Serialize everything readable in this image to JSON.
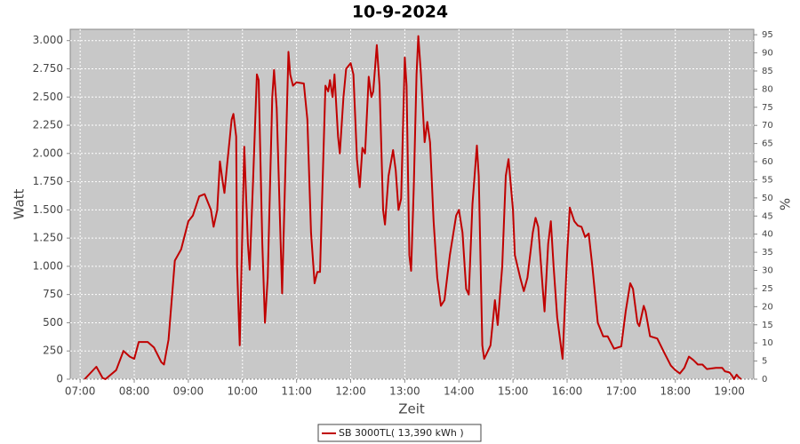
{
  "chart_data": {
    "type": "line",
    "title": "10-9-2024",
    "xlabel": "Zeit",
    "ylabel": "Watt",
    "y2label": "%",
    "xlim": [
      409,
      1167
    ],
    "xticks": [
      {
        "value": 420,
        "label": "07:00"
      },
      {
        "value": 480,
        "label": "08:00"
      },
      {
        "value": 540,
        "label": "09:00"
      },
      {
        "value": 600,
        "label": "10:00"
      },
      {
        "value": 660,
        "label": "11:00"
      },
      {
        "value": 720,
        "label": "12:00"
      },
      {
        "value": 780,
        "label": "13:00"
      },
      {
        "value": 840,
        "label": "14:00"
      },
      {
        "value": 900,
        "label": "15:00"
      },
      {
        "value": 960,
        "label": "16:00"
      },
      {
        "value": 1020,
        "label": "17:00"
      },
      {
        "value": 1080,
        "label": "18:00"
      },
      {
        "value": 1140,
        "label": "19:00"
      }
    ],
    "ylim": [
      0,
      3100
    ],
    "yticks": [
      0,
      250,
      500,
      750,
      {
        "value": 1000,
        "label": "1.000"
      },
      {
        "value": 1250,
        "label": "1.250"
      },
      {
        "value": 1500,
        "label": "1.500"
      },
      {
        "value": 1750,
        "label": "1.750"
      },
      {
        "value": 2000,
        "label": "2.000"
      },
      {
        "value": 2250,
        "label": "2.250"
      },
      {
        "value": 2500,
        "label": "2.500"
      },
      {
        "value": 2750,
        "label": "2.750"
      },
      {
        "value": 3000,
        "label": "3.000"
      }
    ],
    "y2lim": [
      0,
      96.5
    ],
    "y2ticks": [
      0,
      5,
      10,
      15,
      20,
      25,
      30,
      35,
      40,
      45,
      50,
      55,
      60,
      65,
      70,
      75,
      80,
      85,
      90,
      95
    ],
    "grid": true,
    "legend": "bottom",
    "x": [
      425,
      438,
      445,
      448,
      460,
      468,
      475,
      480,
      485,
      495,
      502,
      510,
      513,
      518,
      525,
      532,
      540,
      545,
      552,
      558,
      565,
      568,
      572,
      575,
      578,
      580,
      583,
      588,
      590,
      593,
      594,
      597,
      602,
      606,
      608,
      612,
      616,
      618,
      622,
      625,
      628,
      633,
      635,
      638,
      644,
      648,
      651,
      653,
      656,
      660,
      668,
      672,
      676,
      680,
      683,
      686,
      692,
      695,
      697,
      700,
      702,
      706,
      708,
      712,
      715,
      720,
      723,
      727,
      730,
      733,
      736,
      740,
      743,
      745,
      749,
      752,
      756,
      758,
      762,
      767,
      770,
      773,
      776,
      780,
      782,
      785,
      787,
      790,
      793,
      795,
      798,
      802,
      805,
      808,
      812,
      816,
      820,
      824,
      830,
      837,
      840,
      844,
      848,
      851,
      855,
      860,
      862,
      866,
      868,
      871,
      875,
      880,
      883,
      888,
      892,
      895,
      900,
      902,
      908,
      912,
      916,
      922,
      925,
      928,
      933,
      935,
      939,
      942,
      945,
      949,
      953,
      955,
      960,
      963,
      968,
      972,
      976,
      980,
      984,
      988,
      994,
      1000,
      1005,
      1012,
      1020,
      1025,
      1030,
      1033,
      1038,
      1040,
      1045,
      1047,
      1052,
      1060,
      1068,
      1075,
      1080,
      1085,
      1090,
      1095,
      1100,
      1105,
      1110,
      1115,
      1125,
      1132,
      1135,
      1140,
      1143,
      1145,
      1148,
      1150,
      1153
    ],
    "series": [
      {
        "name": "SB 3000TL( 13,390 kWh )",
        "color": "#c00000",
        "values": [
          0,
          110,
          10,
          0,
          80,
          250,
          200,
          180,
          330,
          330,
          280,
          150,
          130,
          350,
          1050,
          1150,
          1400,
          1450,
          1620,
          1640,
          1500,
          1350,
          1500,
          1930,
          1750,
          1650,
          1900,
          2300,
          2350,
          2150,
          1000,
          300,
          2060,
          1200,
          970,
          1800,
          2700,
          2650,
          1200,
          500,
          900,
          2500,
          2740,
          2400,
          760,
          2000,
          2900,
          2700,
          2600,
          2630,
          2620,
          2300,
          1300,
          850,
          950,
          950,
          2600,
          2550,
          2650,
          2500,
          2700,
          2150,
          2000,
          2500,
          2750,
          2800,
          2700,
          1950,
          1700,
          2050,
          2000,
          2680,
          2500,
          2550,
          2960,
          2600,
          1500,
          1370,
          1800,
          2030,
          1850,
          1500,
          1600,
          2850,
          2600,
          1100,
          960,
          1700,
          2700,
          3040,
          2700,
          2100,
          2280,
          2100,
          1400,
          900,
          650,
          700,
          1100,
          1450,
          1500,
          1300,
          800,
          750,
          1550,
          2070,
          1800,
          300,
          180,
          230,
          300,
          700,
          480,
          1000,
          1800,
          1950,
          1500,
          1100,
          900,
          780,
          900,
          1300,
          1430,
          1350,
          800,
          600,
          1200,
          1400,
          1000,
          550,
          300,
          180,
          1100,
          1520,
          1400,
          1360,
          1350,
          1260,
          1290,
          1000,
          500,
          380,
          380,
          270,
          290,
          600,
          850,
          800,
          500,
          470,
          650,
          600,
          380,
          360,
          230,
          120,
          80,
          50,
          100,
          200,
          170,
          130,
          130,
          90,
          100,
          100,
          70,
          60,
          30,
          0,
          40,
          20,
          0
        ]
      }
    ]
  }
}
